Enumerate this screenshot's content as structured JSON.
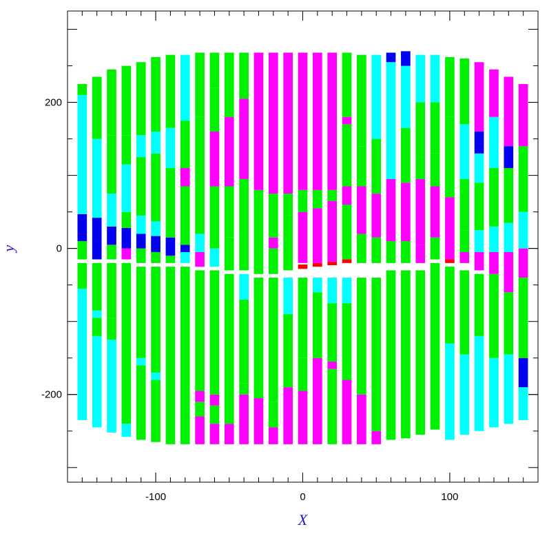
{
  "chart_data": {
    "type": "heatmap",
    "title": "",
    "xlabel": "X",
    "ylabel": "y",
    "xlim": [
      -160,
      160
    ],
    "ylim": [
      -320,
      325
    ],
    "x_ticks": [
      -100,
      0,
      100
    ],
    "y_ticks": [
      -200,
      0,
      200
    ],
    "x_tick_labels": [
      "-100",
      "0",
      "100"
    ],
    "y_tick_labels": [
      "-200",
      "0",
      "200"
    ],
    "grid": false,
    "palette": {
      "g": "#00f000",
      "c": "#00ffff",
      "m": "#ff00ff",
      "b": "#0000ee",
      "r": "#ff0000"
    },
    "strips": [
      {
        "x": -150,
        "segments": [
          [
            -235,
            -55,
            "c"
          ],
          [
            -55,
            -20,
            "g"
          ],
          [
            -15,
            10,
            "g"
          ],
          [
            10,
            47,
            "b"
          ],
          [
            47,
            110,
            "c"
          ],
          [
            110,
            210,
            "c"
          ],
          [
            210,
            225,
            "g"
          ]
        ]
      },
      {
        "x": -140,
        "segments": [
          [
            -245,
            -120,
            "c"
          ],
          [
            -120,
            -95,
            "g"
          ],
          [
            -95,
            -85,
            "c"
          ],
          [
            -85,
            -20,
            "g"
          ],
          [
            -15,
            10,
            "b"
          ],
          [
            10,
            42,
            "b"
          ],
          [
            42,
            150,
            "c"
          ],
          [
            150,
            235,
            "g"
          ]
        ]
      },
      {
        "x": -130,
        "segments": [
          [
            -252,
            -125,
            "c"
          ],
          [
            -125,
            -95,
            "g"
          ],
          [
            -95,
            -20,
            "g"
          ],
          [
            -15,
            5,
            "g"
          ],
          [
            5,
            30,
            "b"
          ],
          [
            30,
            75,
            "c"
          ],
          [
            75,
            155,
            "g"
          ],
          [
            155,
            245,
            "g"
          ]
        ]
      },
      {
        "x": -120,
        "segments": [
          [
            -258,
            -240,
            "c"
          ],
          [
            -240,
            -130,
            "g"
          ],
          [
            -130,
            -20,
            "g"
          ],
          [
            -15,
            0,
            "m"
          ],
          [
            0,
            28,
            "b"
          ],
          [
            28,
            50,
            "g"
          ],
          [
            50,
            115,
            "c"
          ],
          [
            115,
            155,
            "g"
          ],
          [
            155,
            250,
            "g"
          ]
        ]
      },
      {
        "x": -110,
        "segments": [
          [
            -262,
            -160,
            "g"
          ],
          [
            -160,
            -150,
            "c"
          ],
          [
            -150,
            -25,
            "g"
          ],
          [
            -20,
            0,
            "g"
          ],
          [
            0,
            20,
            "b"
          ],
          [
            20,
            45,
            "c"
          ],
          [
            45,
            125,
            "g"
          ],
          [
            125,
            155,
            "c"
          ],
          [
            155,
            255,
            "g"
          ]
        ]
      },
      {
        "x": -100,
        "segments": [
          [
            -265,
            -180,
            "g"
          ],
          [
            -180,
            -170,
            "c"
          ],
          [
            -170,
            -25,
            "g"
          ],
          [
            -20,
            -5,
            "g"
          ],
          [
            -5,
            17,
            "b"
          ],
          [
            17,
            37,
            "c"
          ],
          [
            37,
            130,
            "g"
          ],
          [
            130,
            160,
            "c"
          ],
          [
            160,
            262,
            "g"
          ]
        ]
      },
      {
        "x": -90,
        "segments": [
          [
            -268,
            -25,
            "g"
          ],
          [
            -20,
            -10,
            "g"
          ],
          [
            -10,
            15,
            "b"
          ],
          [
            15,
            35,
            "g"
          ],
          [
            35,
            110,
            "g"
          ],
          [
            110,
            165,
            "c"
          ],
          [
            165,
            265,
            "g"
          ]
        ]
      },
      {
        "x": -80,
        "segments": [
          [
            -268,
            -25,
            "g"
          ],
          [
            -20,
            -5,
            "c"
          ],
          [
            -5,
            5,
            "b"
          ],
          [
            5,
            85,
            "g"
          ],
          [
            85,
            110,
            "m"
          ],
          [
            110,
            175,
            "g"
          ],
          [
            175,
            265,
            "c"
          ]
        ]
      },
      {
        "x": -70,
        "segments": [
          [
            -268,
            -230,
            "m"
          ],
          [
            -230,
            -210,
            "g"
          ],
          [
            -210,
            -195,
            "m"
          ],
          [
            -195,
            -30,
            "g"
          ],
          [
            -25,
            -5,
            "m"
          ],
          [
            -5,
            20,
            "c"
          ],
          [
            20,
            85,
            "g"
          ],
          [
            85,
            180,
            "g"
          ],
          [
            180,
            268,
            "g"
          ]
        ]
      },
      {
        "x": -60,
        "segments": [
          [
            -268,
            -240,
            "m"
          ],
          [
            -240,
            -215,
            "g"
          ],
          [
            -215,
            -200,
            "m"
          ],
          [
            -200,
            -30,
            "g"
          ],
          [
            -25,
            0,
            "c"
          ],
          [
            0,
            85,
            "g"
          ],
          [
            85,
            160,
            "m"
          ],
          [
            160,
            220,
            "g"
          ],
          [
            220,
            268,
            "g"
          ]
        ]
      },
      {
        "x": -50,
        "segments": [
          [
            -268,
            -240,
            "m"
          ],
          [
            -240,
            -35,
            "g"
          ],
          [
            -30,
            15,
            "g"
          ],
          [
            15,
            85,
            "g"
          ],
          [
            85,
            180,
            "m"
          ],
          [
            180,
            200,
            "g"
          ],
          [
            200,
            268,
            "g"
          ]
        ]
      },
      {
        "x": -40,
        "segments": [
          [
            -268,
            -200,
            "m"
          ],
          [
            -200,
            -185,
            "g"
          ],
          [
            -185,
            -70,
            "g"
          ],
          [
            -70,
            -35,
            "c"
          ],
          [
            -30,
            20,
            "g"
          ],
          [
            20,
            95,
            "g"
          ],
          [
            95,
            205,
            "m"
          ],
          [
            205,
            268,
            "g"
          ]
        ]
      },
      {
        "x": -30,
        "segments": [
          [
            -268,
            -205,
            "m"
          ],
          [
            -205,
            -195,
            "g"
          ],
          [
            -195,
            -40,
            "g"
          ],
          [
            -35,
            10,
            "g"
          ],
          [
            10,
            80,
            "g"
          ],
          [
            80,
            268,
            "m"
          ]
        ]
      },
      {
        "x": -20,
        "segments": [
          [
            -268,
            -245,
            "m"
          ],
          [
            -245,
            -210,
            "g"
          ],
          [
            -210,
            -40,
            "g"
          ],
          [
            -35,
            0,
            "g"
          ],
          [
            0,
            15,
            "m"
          ],
          [
            15,
            75,
            "g"
          ],
          [
            75,
            268,
            "m"
          ]
        ]
      },
      {
        "x": -10,
        "segments": [
          [
            -268,
            -190,
            "m"
          ],
          [
            -190,
            -90,
            "g"
          ],
          [
            -90,
            -40,
            "c"
          ],
          [
            -30,
            45,
            "g"
          ],
          [
            45,
            75,
            "g"
          ],
          [
            75,
            268,
            "m"
          ]
        ]
      },
      {
        "x": 0,
        "segments": [
          [
            -268,
            -195,
            "m"
          ],
          [
            -195,
            -150,
            "g"
          ],
          [
            -150,
            -40,
            "g"
          ],
          [
            -28,
            -22,
            "r"
          ],
          [
            -20,
            50,
            "m"
          ],
          [
            50,
            80,
            "g"
          ],
          [
            80,
            268,
            "m"
          ]
        ]
      },
      {
        "x": 10,
        "segments": [
          [
            -268,
            -150,
            "m"
          ],
          [
            -150,
            -60,
            "g"
          ],
          [
            -60,
            -40,
            "c"
          ],
          [
            -25,
            -20,
            "r"
          ],
          [
            -20,
            55,
            "m"
          ],
          [
            55,
            80,
            "g"
          ],
          [
            80,
            268,
            "m"
          ]
        ]
      },
      {
        "x": 20,
        "segments": [
          [
            -268,
            -165,
            "g"
          ],
          [
            -165,
            -155,
            "m"
          ],
          [
            -155,
            -75,
            "g"
          ],
          [
            -75,
            -40,
            "c"
          ],
          [
            -23,
            -18,
            "r"
          ],
          [
            -18,
            65,
            "m"
          ],
          [
            65,
            80,
            "g"
          ],
          [
            80,
            268,
            "m"
          ]
        ]
      },
      {
        "x": 30,
        "segments": [
          [
            -268,
            -180,
            "m"
          ],
          [
            -180,
            -75,
            "g"
          ],
          [
            -75,
            -40,
            "c"
          ],
          [
            -20,
            -15,
            "r"
          ],
          [
            -15,
            60,
            "g"
          ],
          [
            60,
            85,
            "m"
          ],
          [
            85,
            170,
            "g"
          ],
          [
            170,
            180,
            "m"
          ],
          [
            180,
            268,
            "g"
          ]
        ]
      },
      {
        "x": 40,
        "segments": [
          [
            -268,
            -200,
            "m"
          ],
          [
            -200,
            -180,
            "g"
          ],
          [
            -180,
            -40,
            "g"
          ],
          [
            -20,
            20,
            "g"
          ],
          [
            20,
            85,
            "m"
          ],
          [
            85,
            140,
            "g"
          ],
          [
            140,
            265,
            "g"
          ]
        ]
      },
      {
        "x": 50,
        "segments": [
          [
            -268,
            -250,
            "m"
          ],
          [
            -250,
            -230,
            "g"
          ],
          [
            -230,
            -40,
            "g"
          ],
          [
            -20,
            15,
            "g"
          ],
          [
            15,
            75,
            "m"
          ],
          [
            75,
            150,
            "g"
          ],
          [
            150,
            185,
            "c"
          ],
          [
            185,
            265,
            "c"
          ]
        ]
      },
      {
        "x": 60,
        "segments": [
          [
            -262,
            -30,
            "g"
          ],
          [
            -20,
            10,
            "g"
          ],
          [
            10,
            95,
            "m"
          ],
          [
            95,
            255,
            "c"
          ],
          [
            255,
            268,
            "b"
          ]
        ]
      },
      {
        "x": 70,
        "segments": [
          [
            -260,
            -30,
            "g"
          ],
          [
            -20,
            10,
            "g"
          ],
          [
            10,
            90,
            "m"
          ],
          [
            90,
            165,
            "g"
          ],
          [
            165,
            250,
            "c"
          ],
          [
            250,
            270,
            "b"
          ]
        ]
      },
      {
        "x": 80,
        "segments": [
          [
            -255,
            -30,
            "g"
          ],
          [
            -20,
            5,
            "m"
          ],
          [
            5,
            95,
            "m"
          ],
          [
            95,
            125,
            "g"
          ],
          [
            125,
            200,
            "g"
          ],
          [
            200,
            265,
            "c"
          ]
        ]
      },
      {
        "x": 90,
        "segments": [
          [
            -248,
            -20,
            "g"
          ],
          [
            -15,
            15,
            "g"
          ],
          [
            15,
            85,
            "m"
          ],
          [
            85,
            130,
            "g"
          ],
          [
            130,
            200,
            "g"
          ],
          [
            200,
            265,
            "c"
          ]
        ]
      },
      {
        "x": 100,
        "segments": [
          [
            -262,
            -130,
            "c"
          ],
          [
            -130,
            -25,
            "g"
          ],
          [
            -20,
            -15,
            "r"
          ],
          [
            -15,
            70,
            "m"
          ],
          [
            70,
            180,
            "g"
          ],
          [
            180,
            262,
            "g"
          ]
        ]
      },
      {
        "x": 110,
        "segments": [
          [
            -255,
            -145,
            "c"
          ],
          [
            -145,
            -30,
            "g"
          ],
          [
            -20,
            -5,
            "m"
          ],
          [
            -5,
            25,
            "g"
          ],
          [
            25,
            95,
            "g"
          ],
          [
            95,
            170,
            "c"
          ],
          [
            170,
            260,
            "g"
          ]
        ]
      },
      {
        "x": 120,
        "segments": [
          [
            -250,
            -120,
            "c"
          ],
          [
            -120,
            -35,
            "g"
          ],
          [
            -30,
            -5,
            "m"
          ],
          [
            -5,
            25,
            "c"
          ],
          [
            25,
            90,
            "g"
          ],
          [
            90,
            130,
            "c"
          ],
          [
            130,
            160,
            "b"
          ],
          [
            160,
            255,
            "m"
          ]
        ]
      },
      {
        "x": 130,
        "segments": [
          [
            -245,
            -150,
            "c"
          ],
          [
            -150,
            -35,
            "g"
          ],
          [
            -35,
            -5,
            "m"
          ],
          [
            -5,
            30,
            "c"
          ],
          [
            30,
            110,
            "g"
          ],
          [
            110,
            180,
            "c"
          ],
          [
            180,
            245,
            "m"
          ]
        ]
      },
      {
        "x": 140,
        "segments": [
          [
            -240,
            -145,
            "c"
          ],
          [
            -145,
            -60,
            "g"
          ],
          [
            -60,
            -5,
            "m"
          ],
          [
            -5,
            35,
            "c"
          ],
          [
            35,
            110,
            "g"
          ],
          [
            110,
            140,
            "b"
          ],
          [
            140,
            235,
            "m"
          ]
        ]
      },
      {
        "x": 150,
        "segments": [
          [
            -235,
            -190,
            "c"
          ],
          [
            -190,
            -150,
            "b"
          ],
          [
            -150,
            -40,
            "g"
          ],
          [
            -40,
            0,
            "m"
          ],
          [
            0,
            50,
            "c"
          ],
          [
            50,
            140,
            "g"
          ],
          [
            140,
            225,
            "m"
          ]
        ]
      }
    ]
  }
}
